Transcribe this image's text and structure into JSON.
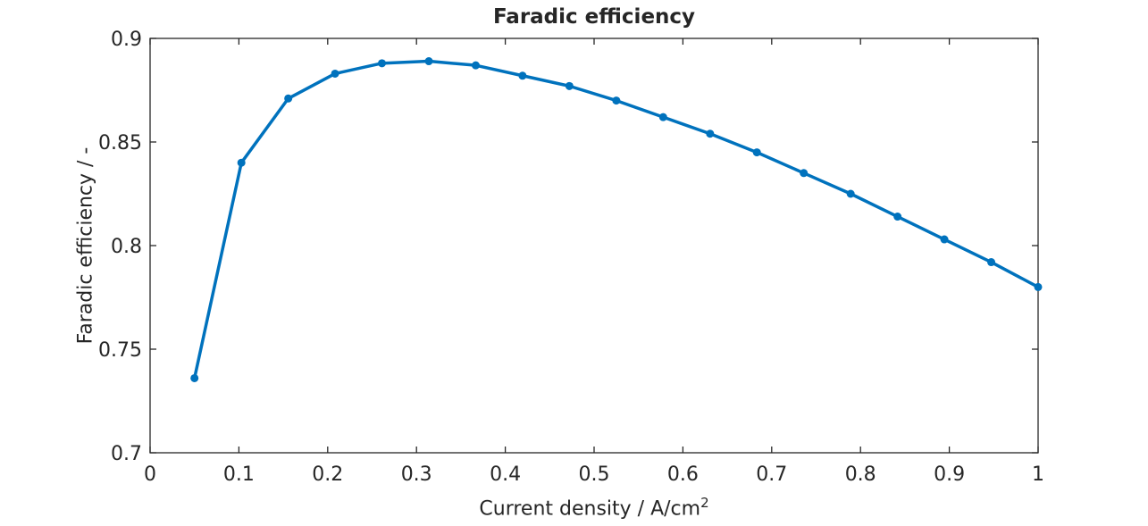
{
  "figure": {
    "background": "#ffffff",
    "text_color": "#262626"
  },
  "chart_data": {
    "type": "line",
    "title": "Faradic efficiency",
    "xlabel": "Current density / A/cm",
    "xlabel_superscript": "2",
    "ylabel": "Faradic efficiency / -",
    "xlim": [
      0,
      1
    ],
    "ylim": [
      0.7,
      0.9
    ],
    "x_ticks": [
      0,
      0.1,
      0.2,
      0.3,
      0.4,
      0.5,
      0.6,
      0.7,
      0.8,
      0.9,
      1
    ],
    "x_tick_labels": [
      "0",
      "0.1",
      "0.2",
      "0.3",
      "0.4",
      "0.5",
      "0.6",
      "0.7",
      "0.8",
      "0.9",
      "1"
    ],
    "y_ticks": [
      0.7,
      0.75,
      0.8,
      0.85,
      0.9
    ],
    "y_tick_labels": [
      "0.7",
      "0.75",
      "0.8",
      "0.85",
      "0.9"
    ],
    "grid": false,
    "legend_position": "none",
    "axis_color": "#262626",
    "series": [
      {
        "color": "#0072BD",
        "marker": "circle",
        "line_width": 3.5,
        "x": [
          0.05,
          0.1028,
          0.1556,
          0.2083,
          0.2611,
          0.3139,
          0.3667,
          0.4194,
          0.4722,
          0.525,
          0.5778,
          0.6306,
          0.6833,
          0.7361,
          0.7889,
          0.8417,
          0.8944,
          0.9472,
          1.0
        ],
        "y": [
          0.736,
          0.84,
          0.871,
          0.883,
          0.888,
          0.889,
          0.887,
          0.882,
          0.877,
          0.87,
          0.862,
          0.854,
          0.845,
          0.835,
          0.825,
          0.814,
          0.803,
          0.792,
          0.78
        ]
      }
    ]
  }
}
